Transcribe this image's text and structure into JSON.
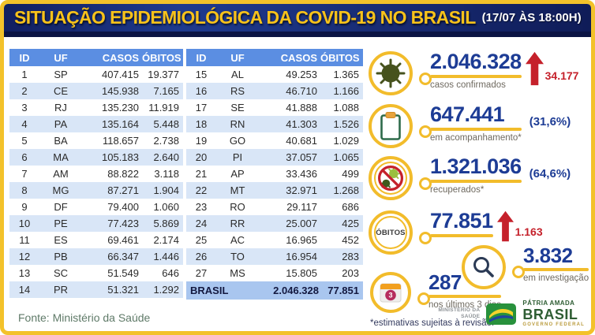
{
  "header": {
    "title": "SITUAÇÃO EPIDEMIOLÓGICA DA COVID-19 NO BRASIL",
    "timestamp": "(17/07 ÀS 18:00H)"
  },
  "chart_data": {
    "type": "table",
    "title": "SITUAÇÃO EPIDEMIOLÓGICA DA COVID-19 NO BRASIL (17/07 ÀS 18:00H)",
    "columns": [
      "ID",
      "UF",
      "CASOS",
      "ÓBITOS"
    ],
    "rows_left": [
      [
        "1",
        "SP",
        "407.415",
        "19.377"
      ],
      [
        "2",
        "CE",
        "145.938",
        "7.165"
      ],
      [
        "3",
        "RJ",
        "135.230",
        "11.919"
      ],
      [
        "4",
        "PA",
        "135.164",
        "5.448"
      ],
      [
        "5",
        "BA",
        "118.657",
        "2.738"
      ],
      [
        "6",
        "MA",
        "105.183",
        "2.640"
      ],
      [
        "7",
        "AM",
        "88.822",
        "3.118"
      ],
      [
        "8",
        "MG",
        "87.271",
        "1.904"
      ],
      [
        "9",
        "DF",
        "79.400",
        "1.060"
      ],
      [
        "10",
        "PE",
        "77.423",
        "5.869"
      ],
      [
        "11",
        "ES",
        "69.461",
        "2.174"
      ],
      [
        "12",
        "PB",
        "66.347",
        "1.446"
      ],
      [
        "13",
        "SC",
        "51.549",
        "646"
      ],
      [
        "14",
        "PR",
        "51.321",
        "1.292"
      ]
    ],
    "rows_right": [
      [
        "15",
        "AL",
        "49.253",
        "1.365"
      ],
      [
        "16",
        "RS",
        "46.710",
        "1.166"
      ],
      [
        "17",
        "SE",
        "41.888",
        "1.088"
      ],
      [
        "18",
        "RN",
        "41.303",
        "1.526"
      ],
      [
        "19",
        "GO",
        "40.681",
        "1.029"
      ],
      [
        "20",
        "PI",
        "37.057",
        "1.065"
      ],
      [
        "21",
        "AP",
        "33.436",
        "499"
      ],
      [
        "22",
        "MT",
        "32.971",
        "1.268"
      ],
      [
        "23",
        "RO",
        "29.117",
        "686"
      ],
      [
        "24",
        "RR",
        "25.007",
        "425"
      ],
      [
        "25",
        "AC",
        "16.965",
        "452"
      ],
      [
        "26",
        "TO",
        "16.954",
        "283"
      ],
      [
        "27",
        "MS",
        "15.805",
        "203"
      ]
    ],
    "total_row": [
      "BRASIL",
      "2.046.328",
      "77.851"
    ]
  },
  "stats": [
    {
      "icon": "virus-icon",
      "value": "2.046.328",
      "label": "casos confirmados",
      "delta": "34.177"
    },
    {
      "icon": "clipboard-icon",
      "value": "647.441",
      "label": "em acompanhamento*",
      "percent": "(31,6%)"
    },
    {
      "icon": "no-virus-icon",
      "value": "1.321.036",
      "label": "recuperados*",
      "percent": "(64,6%)"
    },
    {
      "icon": "obitos-badge",
      "badge": "ÓBITOS",
      "value": "77.851",
      "delta": "1.163"
    },
    {
      "icon": "calendar-icon",
      "badge": "3",
      "value": "287",
      "label": "nos últimos 3 dias"
    },
    {
      "icon": "search-icon",
      "value": "3.832",
      "label": "em investigação"
    }
  ],
  "footer": {
    "source": "Fonte: Ministério da Saúde",
    "disclaimer": "*estimativas sujeitas à revisão.",
    "ministry_line1": "MINISTÉRIO DA",
    "ministry_line2": "SAÚDE",
    "gov_line1": "PÁTRIA AMADA",
    "gov_line2": "BRASIL",
    "gov_line3": "GOVERNO FEDERAL"
  },
  "colors": {
    "frame_gold": "#f3c22a",
    "header_navy": "#17296f",
    "title_yellow": "#f8c21a",
    "table_header_blue": "#5b8ee2",
    "row_stripe_blue": "#d9e6f7",
    "total_row_blue": "#a9c6ef",
    "stat_number_blue": "#1d3c95",
    "alert_red": "#c5212b",
    "icon_green": "#2e6b4a"
  }
}
